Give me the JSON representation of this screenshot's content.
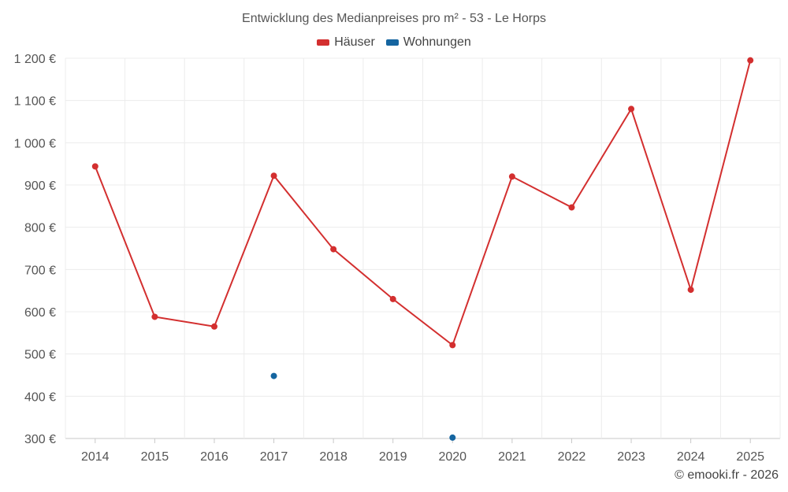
{
  "chart_data": {
    "type": "line",
    "title": "Entwicklung des Medianpreises pro m² - 53 - Le Horps",
    "xlabel": "",
    "ylabel": "",
    "categories": [
      "2014",
      "2015",
      "2016",
      "2017",
      "2018",
      "2019",
      "2020",
      "2021",
      "2022",
      "2023",
      "2024",
      "2025"
    ],
    "ylim": [
      300,
      1200
    ],
    "yticks": [
      300,
      400,
      500,
      600,
      700,
      800,
      900,
      1000,
      1100,
      1200
    ],
    "ytick_labels": [
      "300 €",
      "400 €",
      "500 €",
      "600 €",
      "700 €",
      "800 €",
      "900 €",
      "1 000 €",
      "1 100 €",
      "1 200 €"
    ],
    "grid": true,
    "legend_position": "top-center",
    "series": [
      {
        "name": "Häuser",
        "color": "#d32f2f",
        "style": "line+markers",
        "values": [
          944,
          588,
          565,
          922,
          748,
          630,
          521,
          920,
          847,
          1080,
          652,
          1195
        ]
      },
      {
        "name": "Wohnungen",
        "color": "#1565a0",
        "style": "markers",
        "values": [
          null,
          null,
          null,
          448,
          null,
          null,
          302,
          null,
          null,
          null,
          null,
          null
        ]
      }
    ]
  },
  "credit": "© emooki.fr - 2026"
}
